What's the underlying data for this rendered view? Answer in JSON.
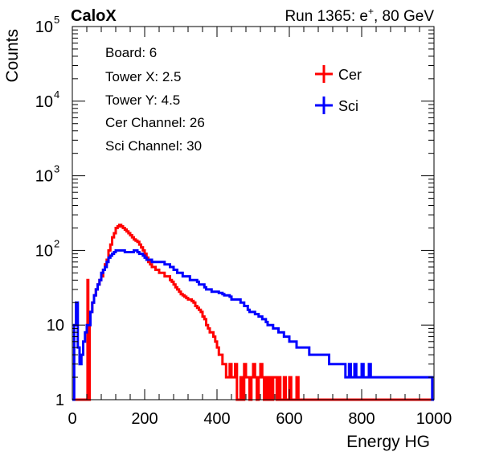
{
  "header": {
    "brand": "CaloX",
    "run_prefix": "Run 1365: e",
    "run_sup": "+",
    "run_suffix": ", 80 GeV"
  },
  "info_box": [
    "Board: 6",
    "Tower X: 2.5",
    "Tower Y: 4.5",
    "Cer Channel: 26",
    "Sci Channel: 30"
  ],
  "chart_data": {
    "type": "line",
    "xlabel": "Energy HG",
    "ylabel": "Counts",
    "xlim": [
      0,
      1000
    ],
    "ylim": [
      1,
      100000
    ],
    "yscale": "log",
    "grid": false,
    "legend_position": "top-right",
    "x_ticks": [
      "0",
      "200",
      "400",
      "600",
      "800",
      "1000"
    ],
    "x_tick_values": [
      0,
      200,
      400,
      600,
      800,
      1000
    ],
    "y_ticks": [
      {
        "value": 1,
        "base": "1",
        "exp": ""
      },
      {
        "value": 10,
        "base": "10",
        "exp": ""
      },
      {
        "value": 100,
        "base": "10",
        "exp": "2"
      },
      {
        "value": 1000,
        "base": "10",
        "exp": "3"
      },
      {
        "value": 10000,
        "base": "10",
        "exp": "4"
      },
      {
        "value": 100000,
        "base": "10",
        "exp": "5"
      }
    ],
    "series": [
      {
        "name": "Cer",
        "color": "#ff0000",
        "points": [
          [
            0,
            1
          ],
          [
            40,
            1
          ],
          [
            42,
            40
          ],
          [
            44,
            1
          ],
          [
            46,
            1
          ],
          [
            48,
            15
          ],
          [
            55,
            20
          ],
          [
            60,
            25
          ],
          [
            65,
            30
          ],
          [
            70,
            35
          ],
          [
            75,
            40
          ],
          [
            80,
            45
          ],
          [
            85,
            55
          ],
          [
            90,
            65
          ],
          [
            95,
            75
          ],
          [
            100,
            100
          ],
          [
            105,
            120
          ],
          [
            110,
            150
          ],
          [
            115,
            170
          ],
          [
            120,
            200
          ],
          [
            125,
            210
          ],
          [
            130,
            220
          ],
          [
            135,
            210
          ],
          [
            140,
            200
          ],
          [
            145,
            190
          ],
          [
            150,
            180
          ],
          [
            155,
            170
          ],
          [
            160,
            160
          ],
          [
            165,
            150
          ],
          [
            170,
            140
          ],
          [
            175,
            135
          ],
          [
            180,
            130
          ],
          [
            185,
            120
          ],
          [
            190,
            110
          ],
          [
            195,
            100
          ],
          [
            200,
            90
          ],
          [
            205,
            80
          ],
          [
            210,
            70
          ],
          [
            215,
            65
          ],
          [
            220,
            60
          ],
          [
            225,
            60
          ],
          [
            230,
            55
          ],
          [
            235,
            55
          ],
          [
            240,
            50
          ],
          [
            245,
            50
          ],
          [
            250,
            50
          ],
          [
            255,
            45
          ],
          [
            260,
            45
          ],
          [
            265,
            45
          ],
          [
            270,
            40
          ],
          [
            275,
            38
          ],
          [
            280,
            35
          ],
          [
            285,
            32
          ],
          [
            290,
            30
          ],
          [
            295,
            28
          ],
          [
            300,
            26
          ],
          [
            305,
            25
          ],
          [
            310,
            24
          ],
          [
            315,
            23
          ],
          [
            320,
            22
          ],
          [
            325,
            22
          ],
          [
            330,
            21
          ],
          [
            335,
            20
          ],
          [
            340,
            18
          ],
          [
            345,
            17
          ],
          [
            350,
            16
          ],
          [
            355,
            15
          ],
          [
            360,
            13
          ],
          [
            365,
            12
          ],
          [
            370,
            10
          ],
          [
            375,
            9
          ],
          [
            380,
            8
          ],
          [
            385,
            8
          ],
          [
            390,
            7
          ],
          [
            395,
            6
          ],
          [
            400,
            5
          ],
          [
            405,
            4
          ],
          [
            410,
            4
          ],
          [
            415,
            3
          ],
          [
            420,
            3
          ],
          [
            425,
            2
          ],
          [
            430,
            2
          ],
          [
            435,
            3
          ],
          [
            440,
            2
          ],
          [
            445,
            2
          ],
          [
            450,
            3
          ],
          [
            455,
            1
          ],
          [
            460,
            1
          ],
          [
            465,
            2
          ],
          [
            470,
            1
          ],
          [
            475,
            3
          ],
          [
            480,
            2
          ],
          [
            485,
            2
          ],
          [
            490,
            1
          ],
          [
            495,
            2
          ],
          [
            500,
            3
          ],
          [
            505,
            2
          ],
          [
            510,
            1
          ],
          [
            515,
            2
          ],
          [
            520,
            3
          ],
          [
            525,
            2
          ],
          [
            530,
            1
          ],
          [
            535,
            2
          ],
          [
            540,
            1
          ],
          [
            545,
            2
          ],
          [
            550,
            1
          ],
          [
            555,
            2
          ],
          [
            560,
            2
          ],
          [
            565,
            1
          ],
          [
            570,
            2
          ],
          [
            575,
            1
          ],
          [
            580,
            1
          ],
          [
            585,
            2
          ],
          [
            590,
            1
          ],
          [
            595,
            1
          ],
          [
            600,
            2
          ],
          [
            605,
            1
          ],
          [
            610,
            1
          ],
          [
            615,
            1
          ],
          [
            620,
            2
          ],
          [
            625,
            1
          ],
          [
            630,
            1
          ],
          [
            635,
            1
          ],
          [
            640,
            1
          ],
          [
            650,
            1
          ],
          [
            1000,
            1
          ]
        ]
      },
      {
        "name": "Sci",
        "color": "#0000ff",
        "points": [
          [
            0,
            1
          ],
          [
            5,
            10
          ],
          [
            10,
            20
          ],
          [
            15,
            5
          ],
          [
            20,
            3
          ],
          [
            25,
            4
          ],
          [
            30,
            6
          ],
          [
            35,
            8
          ],
          [
            40,
            10
          ],
          [
            45,
            10
          ],
          [
            50,
            15
          ],
          [
            55,
            20
          ],
          [
            60,
            25
          ],
          [
            65,
            30
          ],
          [
            70,
            35
          ],
          [
            75,
            40
          ],
          [
            80,
            50
          ],
          [
            85,
            55
          ],
          [
            90,
            60
          ],
          [
            95,
            70
          ],
          [
            100,
            80
          ],
          [
            105,
            85
          ],
          [
            110,
            90
          ],
          [
            115,
            95
          ],
          [
            120,
            100
          ],
          [
            125,
            100
          ],
          [
            130,
            100
          ],
          [
            135,
            100
          ],
          [
            140,
            100
          ],
          [
            145,
            95
          ],
          [
            150,
            95
          ],
          [
            155,
            95
          ],
          [
            160,
            95
          ],
          [
            165,
            95
          ],
          [
            170,
            100
          ],
          [
            175,
            100
          ],
          [
            180,
            95
          ],
          [
            185,
            90
          ],
          [
            190,
            90
          ],
          [
            195,
            85
          ],
          [
            200,
            80
          ],
          [
            205,
            75
          ],
          [
            210,
            75
          ],
          [
            215,
            75
          ],
          [
            220,
            70
          ],
          [
            225,
            70
          ],
          [
            230,
            70
          ],
          [
            235,
            70
          ],
          [
            240,
            70
          ],
          [
            245,
            70
          ],
          [
            250,
            70
          ],
          [
            255,
            65
          ],
          [
            260,
            65
          ],
          [
            265,
            65
          ],
          [
            270,
            60
          ],
          [
            275,
            60
          ],
          [
            280,
            55
          ],
          [
            285,
            55
          ],
          [
            290,
            50
          ],
          [
            295,
            50
          ],
          [
            300,
            50
          ],
          [
            305,
            45
          ],
          [
            310,
            45
          ],
          [
            315,
            45
          ],
          [
            320,
            45
          ],
          [
            325,
            40
          ],
          [
            330,
            40
          ],
          [
            335,
            40
          ],
          [
            340,
            40
          ],
          [
            345,
            38
          ],
          [
            350,
            35
          ],
          [
            355,
            35
          ],
          [
            360,
            35
          ],
          [
            365,
            32
          ],
          [
            370,
            30
          ],
          [
            375,
            30
          ],
          [
            380,
            30
          ],
          [
            385,
            28
          ],
          [
            390,
            28
          ],
          [
            395,
            28
          ],
          [
            400,
            28
          ],
          [
            405,
            27
          ],
          [
            410,
            27
          ],
          [
            415,
            26
          ],
          [
            420,
            25
          ],
          [
            425,
            25
          ],
          [
            430,
            25
          ],
          [
            435,
            24
          ],
          [
            440,
            22
          ],
          [
            445,
            22
          ],
          [
            450,
            22
          ],
          [
            455,
            22
          ],
          [
            460,
            22
          ],
          [
            465,
            20
          ],
          [
            470,
            20
          ],
          [
            475,
            18
          ],
          [
            480,
            18
          ],
          [
            485,
            16
          ],
          [
            490,
            15
          ],
          [
            495,
            15
          ],
          [
            500,
            15
          ],
          [
            505,
            14
          ],
          [
            510,
            14
          ],
          [
            515,
            13
          ],
          [
            520,
            13
          ],
          [
            525,
            12
          ],
          [
            530,
            12
          ],
          [
            535,
            11
          ],
          [
            540,
            10
          ],
          [
            545,
            10
          ],
          [
            550,
            10
          ],
          [
            555,
            9
          ],
          [
            560,
            9
          ],
          [
            565,
            9
          ],
          [
            570,
            8
          ],
          [
            575,
            8
          ],
          [
            580,
            8
          ],
          [
            585,
            7
          ],
          [
            590,
            7
          ],
          [
            595,
            7
          ],
          [
            600,
            6
          ],
          [
            605,
            6
          ],
          [
            610,
            6
          ],
          [
            615,
            6
          ],
          [
            620,
            5
          ],
          [
            625,
            5
          ],
          [
            630,
            5
          ],
          [
            635,
            5
          ],
          [
            640,
            5
          ],
          [
            645,
            5
          ],
          [
            650,
            5
          ],
          [
            655,
            4
          ],
          [
            660,
            4
          ],
          [
            665,
            4
          ],
          [
            670,
            4
          ],
          [
            675,
            4
          ],
          [
            680,
            4
          ],
          [
            685,
            4
          ],
          [
            690,
            4
          ],
          [
            695,
            4
          ],
          [
            700,
            4
          ],
          [
            705,
            4
          ],
          [
            710,
            3
          ],
          [
            715,
            3
          ],
          [
            720,
            3
          ],
          [
            725,
            3
          ],
          [
            730,
            3
          ],
          [
            735,
            3
          ],
          [
            740,
            3
          ],
          [
            745,
            3
          ],
          [
            750,
            3
          ],
          [
            755,
            2
          ],
          [
            760,
            2
          ],
          [
            765,
            3
          ],
          [
            770,
            2
          ],
          [
            775,
            2
          ],
          [
            780,
            3
          ],
          [
            785,
            2
          ],
          [
            790,
            2
          ],
          [
            795,
            2
          ],
          [
            800,
            3
          ],
          [
            805,
            2
          ],
          [
            810,
            2
          ],
          [
            815,
            2
          ],
          [
            820,
            3
          ],
          [
            825,
            2
          ],
          [
            830,
            2
          ],
          [
            835,
            2
          ],
          [
            840,
            2
          ],
          [
            845,
            2
          ],
          [
            850,
            2
          ],
          [
            855,
            2
          ],
          [
            860,
            2
          ],
          [
            865,
            2
          ],
          [
            870,
            2
          ],
          [
            875,
            2
          ],
          [
            880,
            2
          ],
          [
            885,
            2
          ],
          [
            890,
            2
          ],
          [
            895,
            2
          ],
          [
            900,
            2
          ],
          [
            905,
            2
          ],
          [
            910,
            2
          ],
          [
            915,
            2
          ],
          [
            920,
            2
          ],
          [
            925,
            2
          ],
          [
            930,
            2
          ],
          [
            935,
            2
          ],
          [
            940,
            2
          ],
          [
            945,
            2
          ],
          [
            950,
            2
          ],
          [
            955,
            2
          ],
          [
            960,
            2
          ],
          [
            965,
            2
          ],
          [
            970,
            2
          ],
          [
            975,
            2
          ],
          [
            980,
            2
          ],
          [
            985,
            2
          ],
          [
            990,
            2
          ],
          [
            995,
            1
          ]
        ]
      }
    ]
  }
}
